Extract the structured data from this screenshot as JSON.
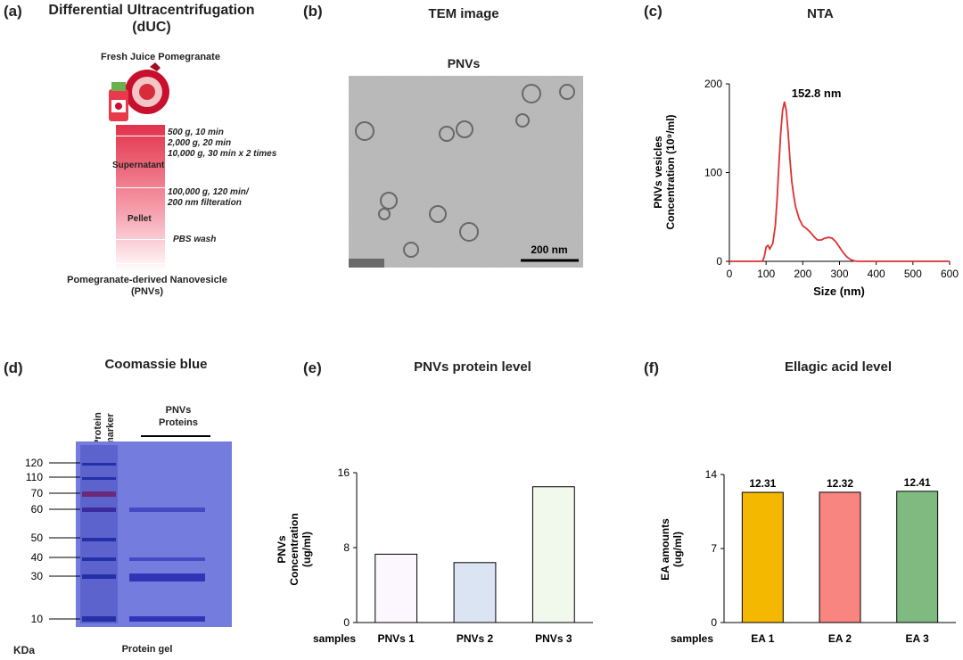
{
  "panel_a": {
    "label": "(a)",
    "title_line1": "Differential Ultracentrifugation",
    "title_line2": "(dUC)",
    "source": "Fresh Juice Pomegranate",
    "steps": [
      "500 g, 10 min",
      "2,000 g, 20 min",
      "10,000 g, 30 min x 2 times",
      "100,000 g, 120 min/",
      "200 nm filteration",
      "PBS wash"
    ],
    "supernatant": "Supernatant",
    "pellet": "Pellet",
    "product_line1": "Pomegranate-derived Nanovesicle",
    "product_line2": "(PNVs)"
  },
  "panel_b": {
    "label": "(b)",
    "title": "TEM image",
    "subtitle": "PNVs",
    "scale_bar": "200 nm"
  },
  "panel_d": {
    "label": "(d)",
    "title": "Coomassie blue",
    "marker_label_line1": "Protein",
    "marker_label_line2": "marker",
    "lane_label_line1": "PNVs",
    "lane_label_line2": "Proteins",
    "kda": "KDa",
    "gel_caption": "Protein gel",
    "ladder": [
      "120",
      "110",
      "70",
      "60",
      "50",
      "40",
      "30",
      "10"
    ]
  },
  "chart_data": [
    {
      "id": "c",
      "type": "line",
      "label": "(c)",
      "title": "NTA",
      "xlabel": "Size (nm)",
      "ylabel_line1": "PNVs vesicles",
      "ylabel_line2": "Concentration (10⁹/ml)",
      "xlim": [
        0,
        600
      ],
      "ylim": [
        0,
        200
      ],
      "xticks": [
        0,
        100,
        200,
        300,
        400,
        500,
        600
      ],
      "yticks": [
        0,
        100,
        200
      ],
      "peak_label": "152.8 nm",
      "color": "#e03030",
      "x": [
        0,
        90,
        95,
        100,
        105,
        110,
        118,
        125,
        130,
        135,
        140,
        145,
        150,
        155,
        160,
        165,
        170,
        175,
        180,
        190,
        200,
        210,
        220,
        230,
        240,
        250,
        260,
        270,
        280,
        290,
        300,
        310,
        320,
        330,
        340,
        350,
        600
      ],
      "y": [
        0,
        0,
        5,
        16,
        18,
        14,
        20,
        40,
        70,
        110,
        145,
        170,
        180,
        170,
        145,
        115,
        90,
        75,
        62,
        48,
        40,
        37,
        33,
        28,
        24,
        24,
        26,
        27,
        26,
        22,
        16,
        10,
        5,
        2,
        0.5,
        0,
        0
      ]
    },
    {
      "id": "e",
      "type": "bar",
      "label": "(e)",
      "title": "PNVs protein level",
      "ylabel_line1": "PNVs",
      "ylabel_line2": "Concentration",
      "ylabel_line3": "(ug/ml)",
      "xlabel": "samples",
      "ylim": [
        0,
        16
      ],
      "yticks": [
        0,
        8,
        16
      ],
      "categories": [
        "PNVs 1",
        "PNVs 2",
        "PNVs 3"
      ],
      "values": [
        7.3,
        6.4,
        14.5
      ],
      "colors": [
        "#fbf6ff",
        "#dbe4f2",
        "#f1f8ec"
      ]
    },
    {
      "id": "f",
      "type": "bar",
      "label": "(f)",
      "title": "Ellagic acid level",
      "ylabel_line1": "EA amounts",
      "ylabel_line2": "(ug/ml)",
      "xlabel": "samples",
      "ylim": [
        0,
        14
      ],
      "yticks": [
        0,
        7,
        14
      ],
      "categories": [
        "EA 1",
        "EA 2",
        "EA 3"
      ],
      "values": [
        12.31,
        12.32,
        12.41
      ],
      "value_labels": [
        "12.31",
        "12.32",
        "12.41"
      ],
      "colors": [
        "#f5b800",
        "#f8857f",
        "#7fbb80"
      ]
    }
  ]
}
